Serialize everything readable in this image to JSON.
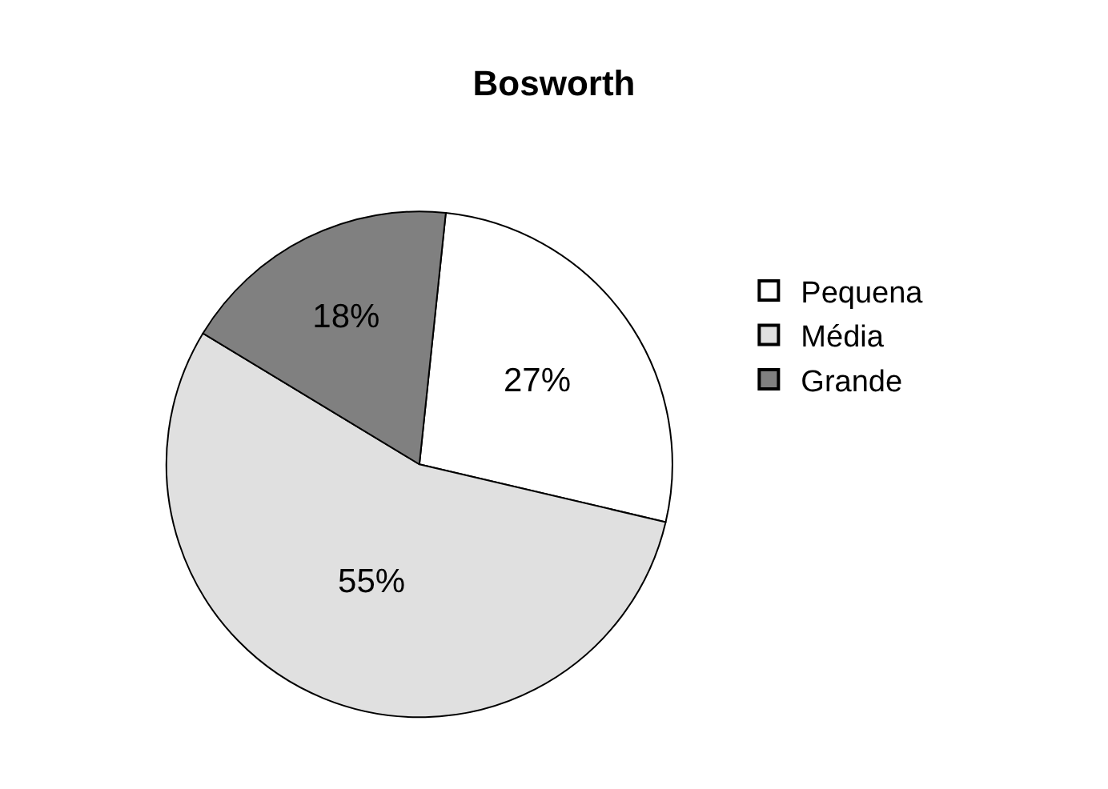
{
  "chart_data": {
    "type": "pie",
    "title": "Bosworth",
    "categories": [
      "Pequena",
      "Média",
      "Grande"
    ],
    "values": [
      27,
      55,
      18
    ],
    "colors": [
      "#ffffff",
      "#e0e0e0",
      "#808080"
    ],
    "value_labels": [
      "27%",
      "55%",
      "18%"
    ],
    "legend": "right"
  }
}
